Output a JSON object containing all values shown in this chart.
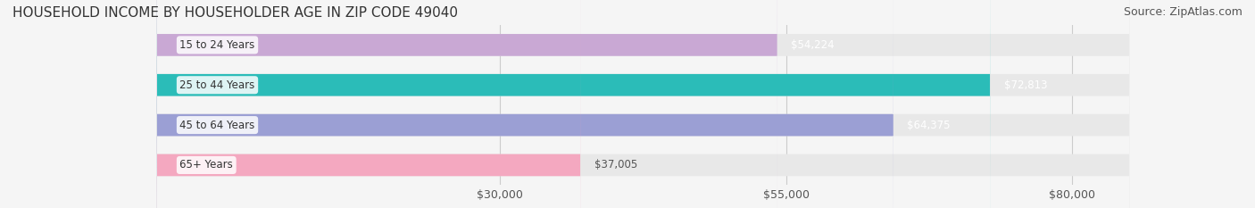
{
  "title": "HOUSEHOLD INCOME BY HOUSEHOLDER AGE IN ZIP CODE 49040",
  "source": "Source: ZipAtlas.com",
  "categories": [
    "15 to 24 Years",
    "25 to 44 Years",
    "45 to 64 Years",
    "65+ Years"
  ],
  "values": [
    54224,
    72813,
    64375,
    37005
  ],
  "bar_colors": [
    "#c9a8d4",
    "#2bbcb8",
    "#9b9fd4",
    "#f4a8c0"
  ],
  "track_color": "#e8e8e8",
  "value_labels": [
    "$54,224",
    "$72,813",
    "$64,375",
    "$37,005"
  ],
  "x_ticks": [
    30000,
    55000,
    80000
  ],
  "x_tick_labels": [
    "$30,000",
    "$55,000",
    "$80,000"
  ],
  "xlim": [
    0,
    85000
  ],
  "label_bg_color": "#ffffff",
  "title_fontsize": 11,
  "source_fontsize": 9,
  "tick_fontsize": 9,
  "bar_height": 0.55,
  "background_color": "#f5f5f5"
}
